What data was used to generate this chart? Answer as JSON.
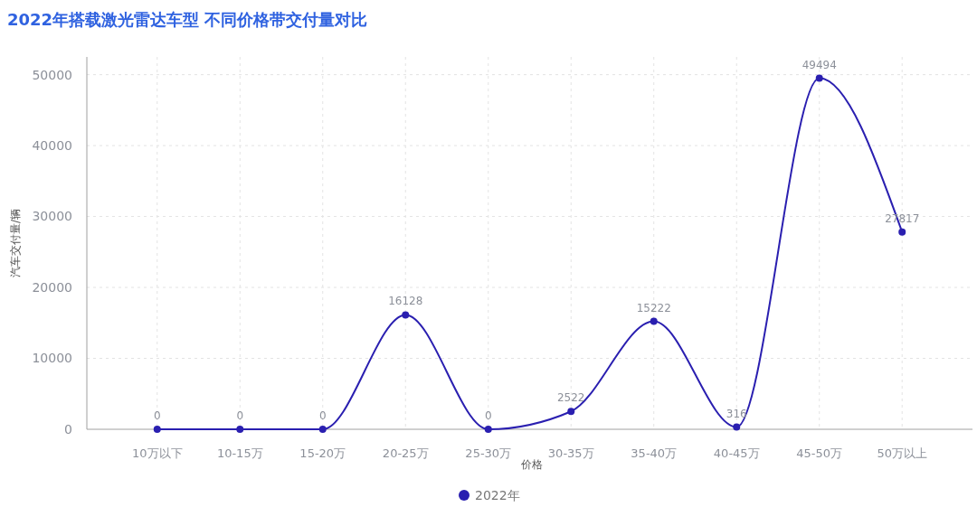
{
  "chart_data": {
    "type": "line",
    "title": "2022年搭载激光雷达车型 不同价格带交付量对比",
    "xlabel": "价格",
    "ylabel": "汽车交付量/辆",
    "categories": [
      "10万以下",
      "10-15万",
      "15-20万",
      "20-25万",
      "25-30万",
      "30-35万",
      "35-40万",
      "40-45万",
      "45-50万",
      "50万以上"
    ],
    "series": [
      {
        "name": "2022年",
        "color": "#2a1fb0",
        "values": [
          0,
          0,
          0,
          16128,
          0,
          2522,
          15222,
          316,
          49494,
          27817
        ]
      }
    ],
    "ylim": [
      0,
      52500
    ],
    "yticks": [
      0,
      10000,
      20000,
      30000,
      40000,
      50000
    ],
    "grid": true,
    "legend": "bottom",
    "marker": "circle",
    "line_style": "solid",
    "data_labels": true
  }
}
